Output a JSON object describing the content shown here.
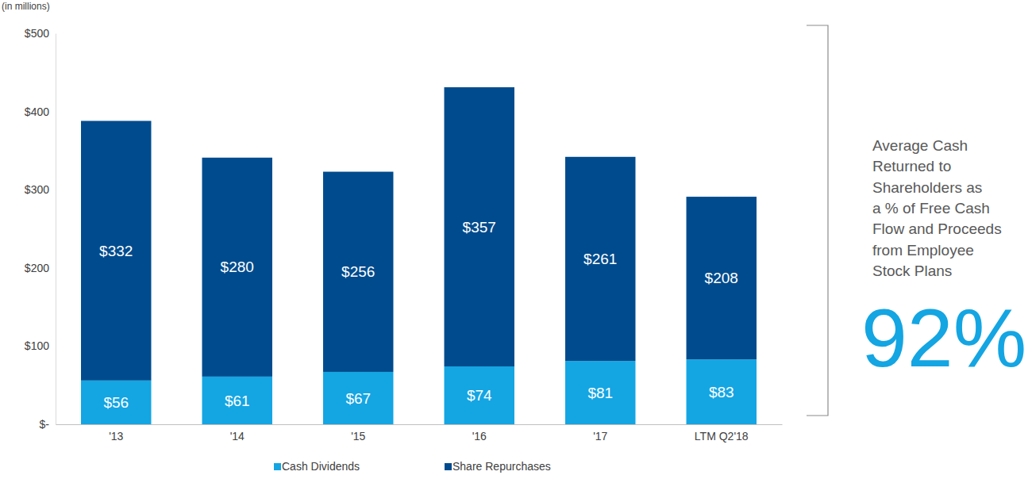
{
  "chart_data": {
    "type": "bar",
    "stacked": true,
    "data_labels": true,
    "grid": false,
    "legend": "bottom",
    "ylabel": "(in millions)",
    "categories": [
      "'13",
      "'14",
      "'15",
      "'16",
      "'17",
      "LTM Q2'18"
    ],
    "series": [
      {
        "name": "Cash Dividends",
        "color": "#14a5e3",
        "values": [
          56,
          61,
          67,
          74,
          81,
          83
        ],
        "value_labels": [
          "$56",
          "$61",
          "$67",
          "$74",
          "$81",
          "$83"
        ]
      },
      {
        "name": "Share Repurchases",
        "color": "#004b8d",
        "values": [
          332,
          280,
          256,
          357,
          261,
          208
        ],
        "value_labels": [
          "$332",
          "$280",
          "$256",
          "$357",
          "$261",
          "$208"
        ]
      }
    ],
    "ylim": [
      0,
      500
    ],
    "yticks": [
      {
        "value": 0,
        "label": "$-"
      },
      {
        "value": 100,
        "label": "$100"
      },
      {
        "value": 200,
        "label": "$200"
      },
      {
        "value": 300,
        "label": "$300"
      },
      {
        "value": 400,
        "label": "$400"
      },
      {
        "value": 500,
        "label": "$500"
      }
    ],
    "annotations": [
      {
        "lines": [
          "Average Cash",
          "Returned to",
          "Shareholders as",
          "a % of Free Cash",
          "Flow and Proceeds",
          "from Employee",
          "Stock Plans"
        ]
      },
      {
        "text": "92%"
      }
    ]
  }
}
